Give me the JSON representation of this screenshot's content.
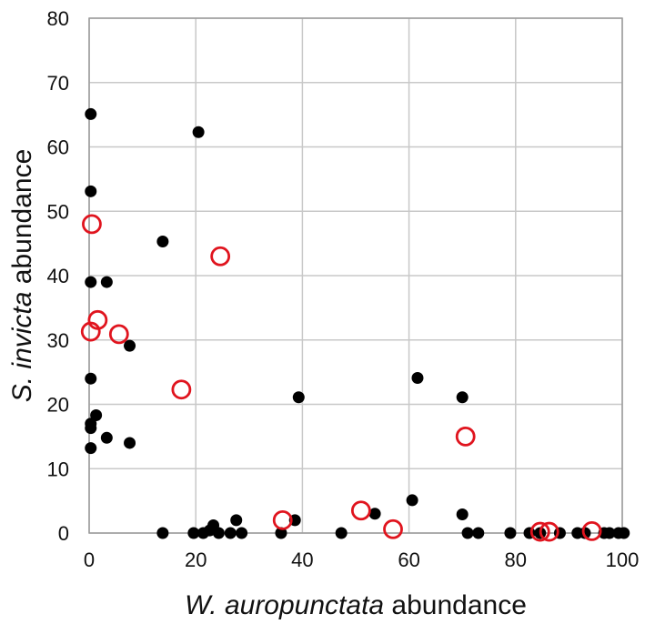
{
  "chart_data": {
    "type": "scatter",
    "title": "",
    "xlabel": {
      "italic": "W. auropunctata",
      "rest": " abundance"
    },
    "ylabel": {
      "italic": "S. invicta",
      "rest": " abundance"
    },
    "xlim": [
      0,
      100
    ],
    "ylim": [
      0,
      80
    ],
    "xticks": [
      0,
      20,
      40,
      60,
      80,
      100
    ],
    "yticks": [
      0,
      10,
      20,
      30,
      40,
      50,
      60,
      70,
      80
    ],
    "grid": true,
    "legend": "none",
    "series": [
      {
        "marker": "filled-circle",
        "color": "#000000",
        "points": [
          [
            0.3,
            65.1
          ],
          [
            0.3,
            53.1
          ],
          [
            0.3,
            39.0
          ],
          [
            0.3,
            24.0
          ],
          [
            0.3,
            17.0
          ],
          [
            0.3,
            16.3
          ],
          [
            0.3,
            13.2
          ],
          [
            1.3,
            18.3
          ],
          [
            3.3,
            39.0
          ],
          [
            3.3,
            14.8
          ],
          [
            7.6,
            29.1
          ],
          [
            7.6,
            14.0
          ],
          [
            13.8,
            45.3
          ],
          [
            20.5,
            62.3
          ],
          [
            13.8,
            0.0
          ],
          [
            19.6,
            0.0
          ],
          [
            21.4,
            0.0
          ],
          [
            22.6,
            0.4
          ],
          [
            23.3,
            1.2
          ],
          [
            24.3,
            0.0
          ],
          [
            26.5,
            0.0
          ],
          [
            27.6,
            2.0
          ],
          [
            28.6,
            0.0
          ],
          [
            36.0,
            0.0
          ],
          [
            38.6,
            2.0
          ],
          [
            39.3,
            21.1
          ],
          [
            47.3,
            0.0
          ],
          [
            53.6,
            3.0
          ],
          [
            60.6,
            5.1
          ],
          [
            61.6,
            24.1
          ],
          [
            70.0,
            21.1
          ],
          [
            70.0,
            2.9
          ],
          [
            71.0,
            0.0
          ],
          [
            73.0,
            0.0
          ],
          [
            79.0,
            0.0
          ],
          [
            82.6,
            0.0
          ],
          [
            84.6,
            0.0
          ],
          [
            88.3,
            0.0
          ],
          [
            91.6,
            0.0
          ],
          [
            93.0,
            0.0
          ],
          [
            96.6,
            0.0
          ],
          [
            97.6,
            0.0
          ],
          [
            99.3,
            0.0
          ],
          [
            100.3,
            0.0
          ]
        ]
      },
      {
        "marker": "open-circle",
        "color": "#e0141e",
        "points": [
          [
            0.5,
            48.0
          ],
          [
            0.3,
            31.3
          ],
          [
            1.6,
            33.1
          ],
          [
            5.6,
            30.9
          ],
          [
            17.3,
            22.3
          ],
          [
            24.6,
            43.0
          ],
          [
            36.3,
            2.0
          ],
          [
            51.0,
            3.5
          ],
          [
            57.0,
            0.6
          ],
          [
            70.6,
            15.0
          ],
          [
            84.6,
            0.2
          ],
          [
            86.3,
            0.2
          ],
          [
            94.3,
            0.3
          ]
        ]
      }
    ]
  }
}
